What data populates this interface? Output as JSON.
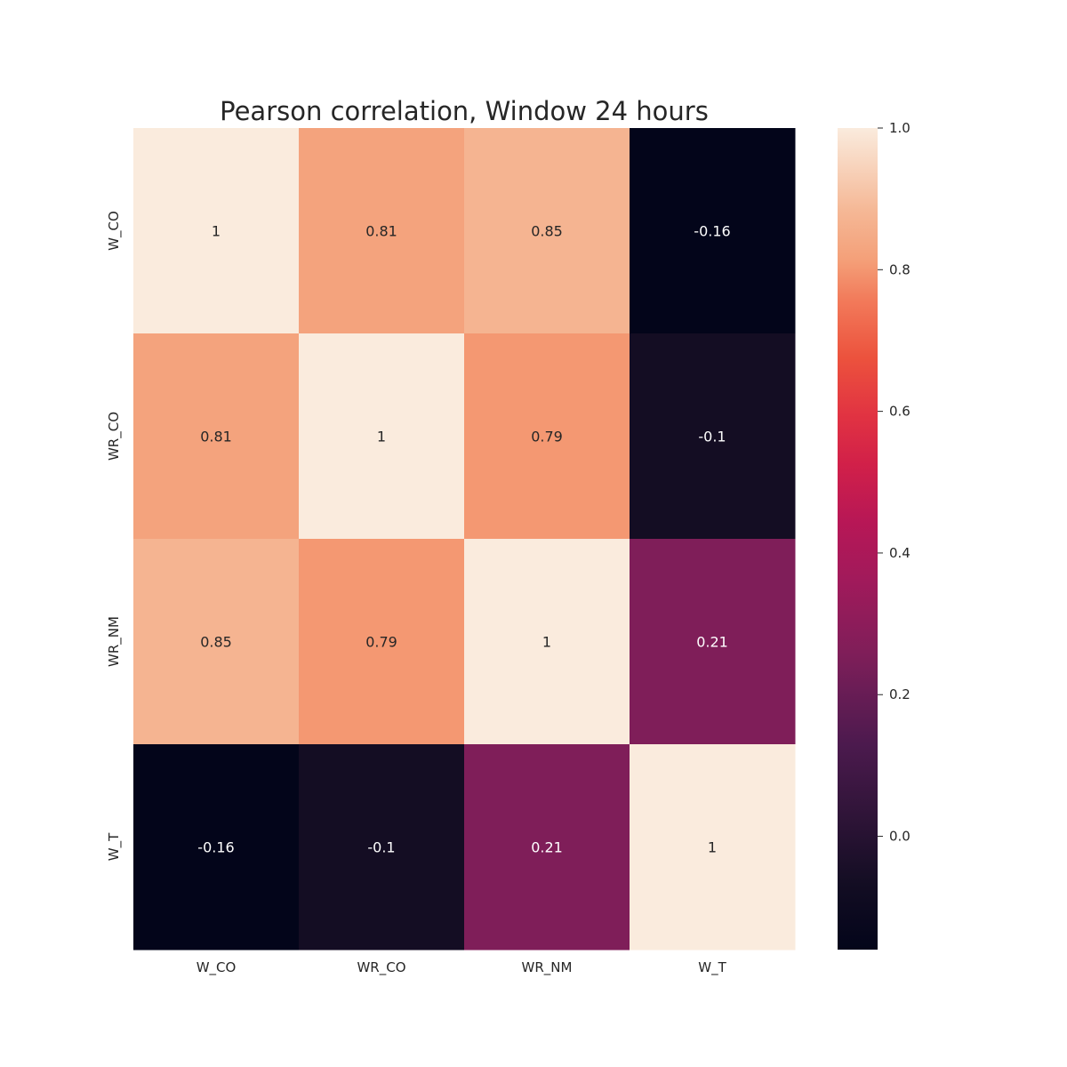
{
  "chart_data": {
    "type": "heatmap",
    "title": "Pearson correlation, Window 24 hours",
    "xlabel": "",
    "ylabel": "",
    "x_categories": [
      "W_CO",
      "WR_CO",
      "WR_NM",
      "W_T"
    ],
    "y_categories": [
      "W_CO",
      "WR_CO",
      "WR_NM",
      "W_T"
    ],
    "values": [
      [
        1,
        0.81,
        0.85,
        -0.16
      ],
      [
        0.81,
        1,
        0.79,
        -0.1
      ],
      [
        0.85,
        0.79,
        1,
        0.21
      ],
      [
        -0.16,
        -0.1,
        0.21,
        1
      ]
    ],
    "annotations": [
      [
        "1",
        "0.81",
        "0.85",
        "-0.16"
      ],
      [
        "0.81",
        "1",
        "0.79",
        "-0.1"
      ],
      [
        "0.85",
        "0.79",
        "1",
        "0.21"
      ],
      [
        "-0.16",
        "-0.1",
        "0.21",
        "1"
      ]
    ],
    "colorbar": {
      "min": -0.16,
      "max": 1.0,
      "ticks": [
        1.0,
        0.8,
        0.6,
        0.4,
        0.2,
        0.0
      ],
      "tick_labels": [
        "1.0",
        "0.8",
        "0.6",
        "0.4",
        "0.2",
        "0.0"
      ],
      "colormap": "rocket"
    }
  }
}
